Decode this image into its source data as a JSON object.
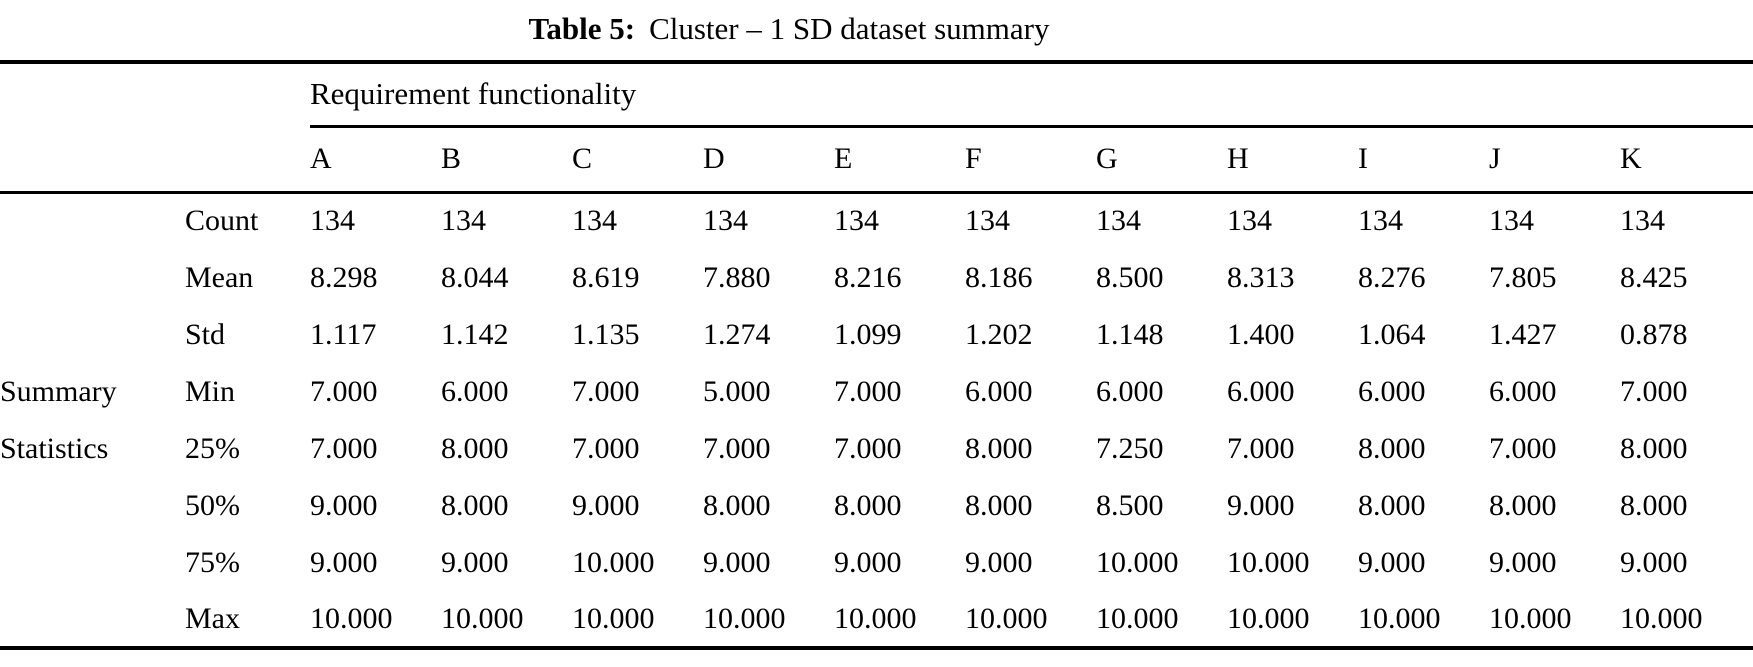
{
  "caption": {
    "label": "Table 5:",
    "title": "Cluster – 1 SD dataset summary"
  },
  "table": {
    "span_header": "Requirement functionality",
    "group_label_line1": "Summary",
    "group_label_line2": "Statistics",
    "columns": [
      "A",
      "B",
      "C",
      "D",
      "E",
      "F",
      "G",
      "H",
      "I",
      "J",
      "K"
    ],
    "rows": [
      {
        "label": "Count",
        "values": [
          "134",
          "134",
          "134",
          "134",
          "134",
          "134",
          "134",
          "134",
          "134",
          "134",
          "134"
        ]
      },
      {
        "label": "Mean",
        "values": [
          "8.298",
          "8.044",
          "8.619",
          "7.880",
          "8.216",
          "8.186",
          "8.500",
          "8.313",
          "8.276",
          "7.805",
          "8.425"
        ]
      },
      {
        "label": "Std",
        "values": [
          "1.117",
          "1.142",
          "1.135",
          "1.274",
          "1.099",
          "1.202",
          "1.148",
          "1.400",
          "1.064",
          "1.427",
          "0.878"
        ]
      },
      {
        "label": "Min",
        "values": [
          "7.000",
          "6.000",
          "7.000",
          "5.000",
          "7.000",
          "6.000",
          "6.000",
          "6.000",
          "6.000",
          "6.000",
          "7.000"
        ]
      },
      {
        "label": "25%",
        "values": [
          "7.000",
          "8.000",
          "7.000",
          "7.000",
          "7.000",
          "8.000",
          "7.250",
          "7.000",
          "8.000",
          "7.000",
          "8.000"
        ]
      },
      {
        "label": "50%",
        "values": [
          "9.000",
          "8.000",
          "9.000",
          "8.000",
          "8.000",
          "8.000",
          "8.500",
          "9.000",
          "8.000",
          "8.000",
          "8.000"
        ]
      },
      {
        "label": "75%",
        "values": [
          "9.000",
          "9.000",
          "10.000",
          "9.000",
          "9.000",
          "9.000",
          "10.000",
          "10.000",
          "9.000",
          "9.000",
          "9.000"
        ]
      },
      {
        "label": "Max",
        "values": [
          "10.000",
          "10.000",
          "10.000",
          "10.000",
          "10.000",
          "10.000",
          "10.000",
          "10.000",
          "10.000",
          "10.000",
          "10.000"
        ]
      }
    ]
  }
}
